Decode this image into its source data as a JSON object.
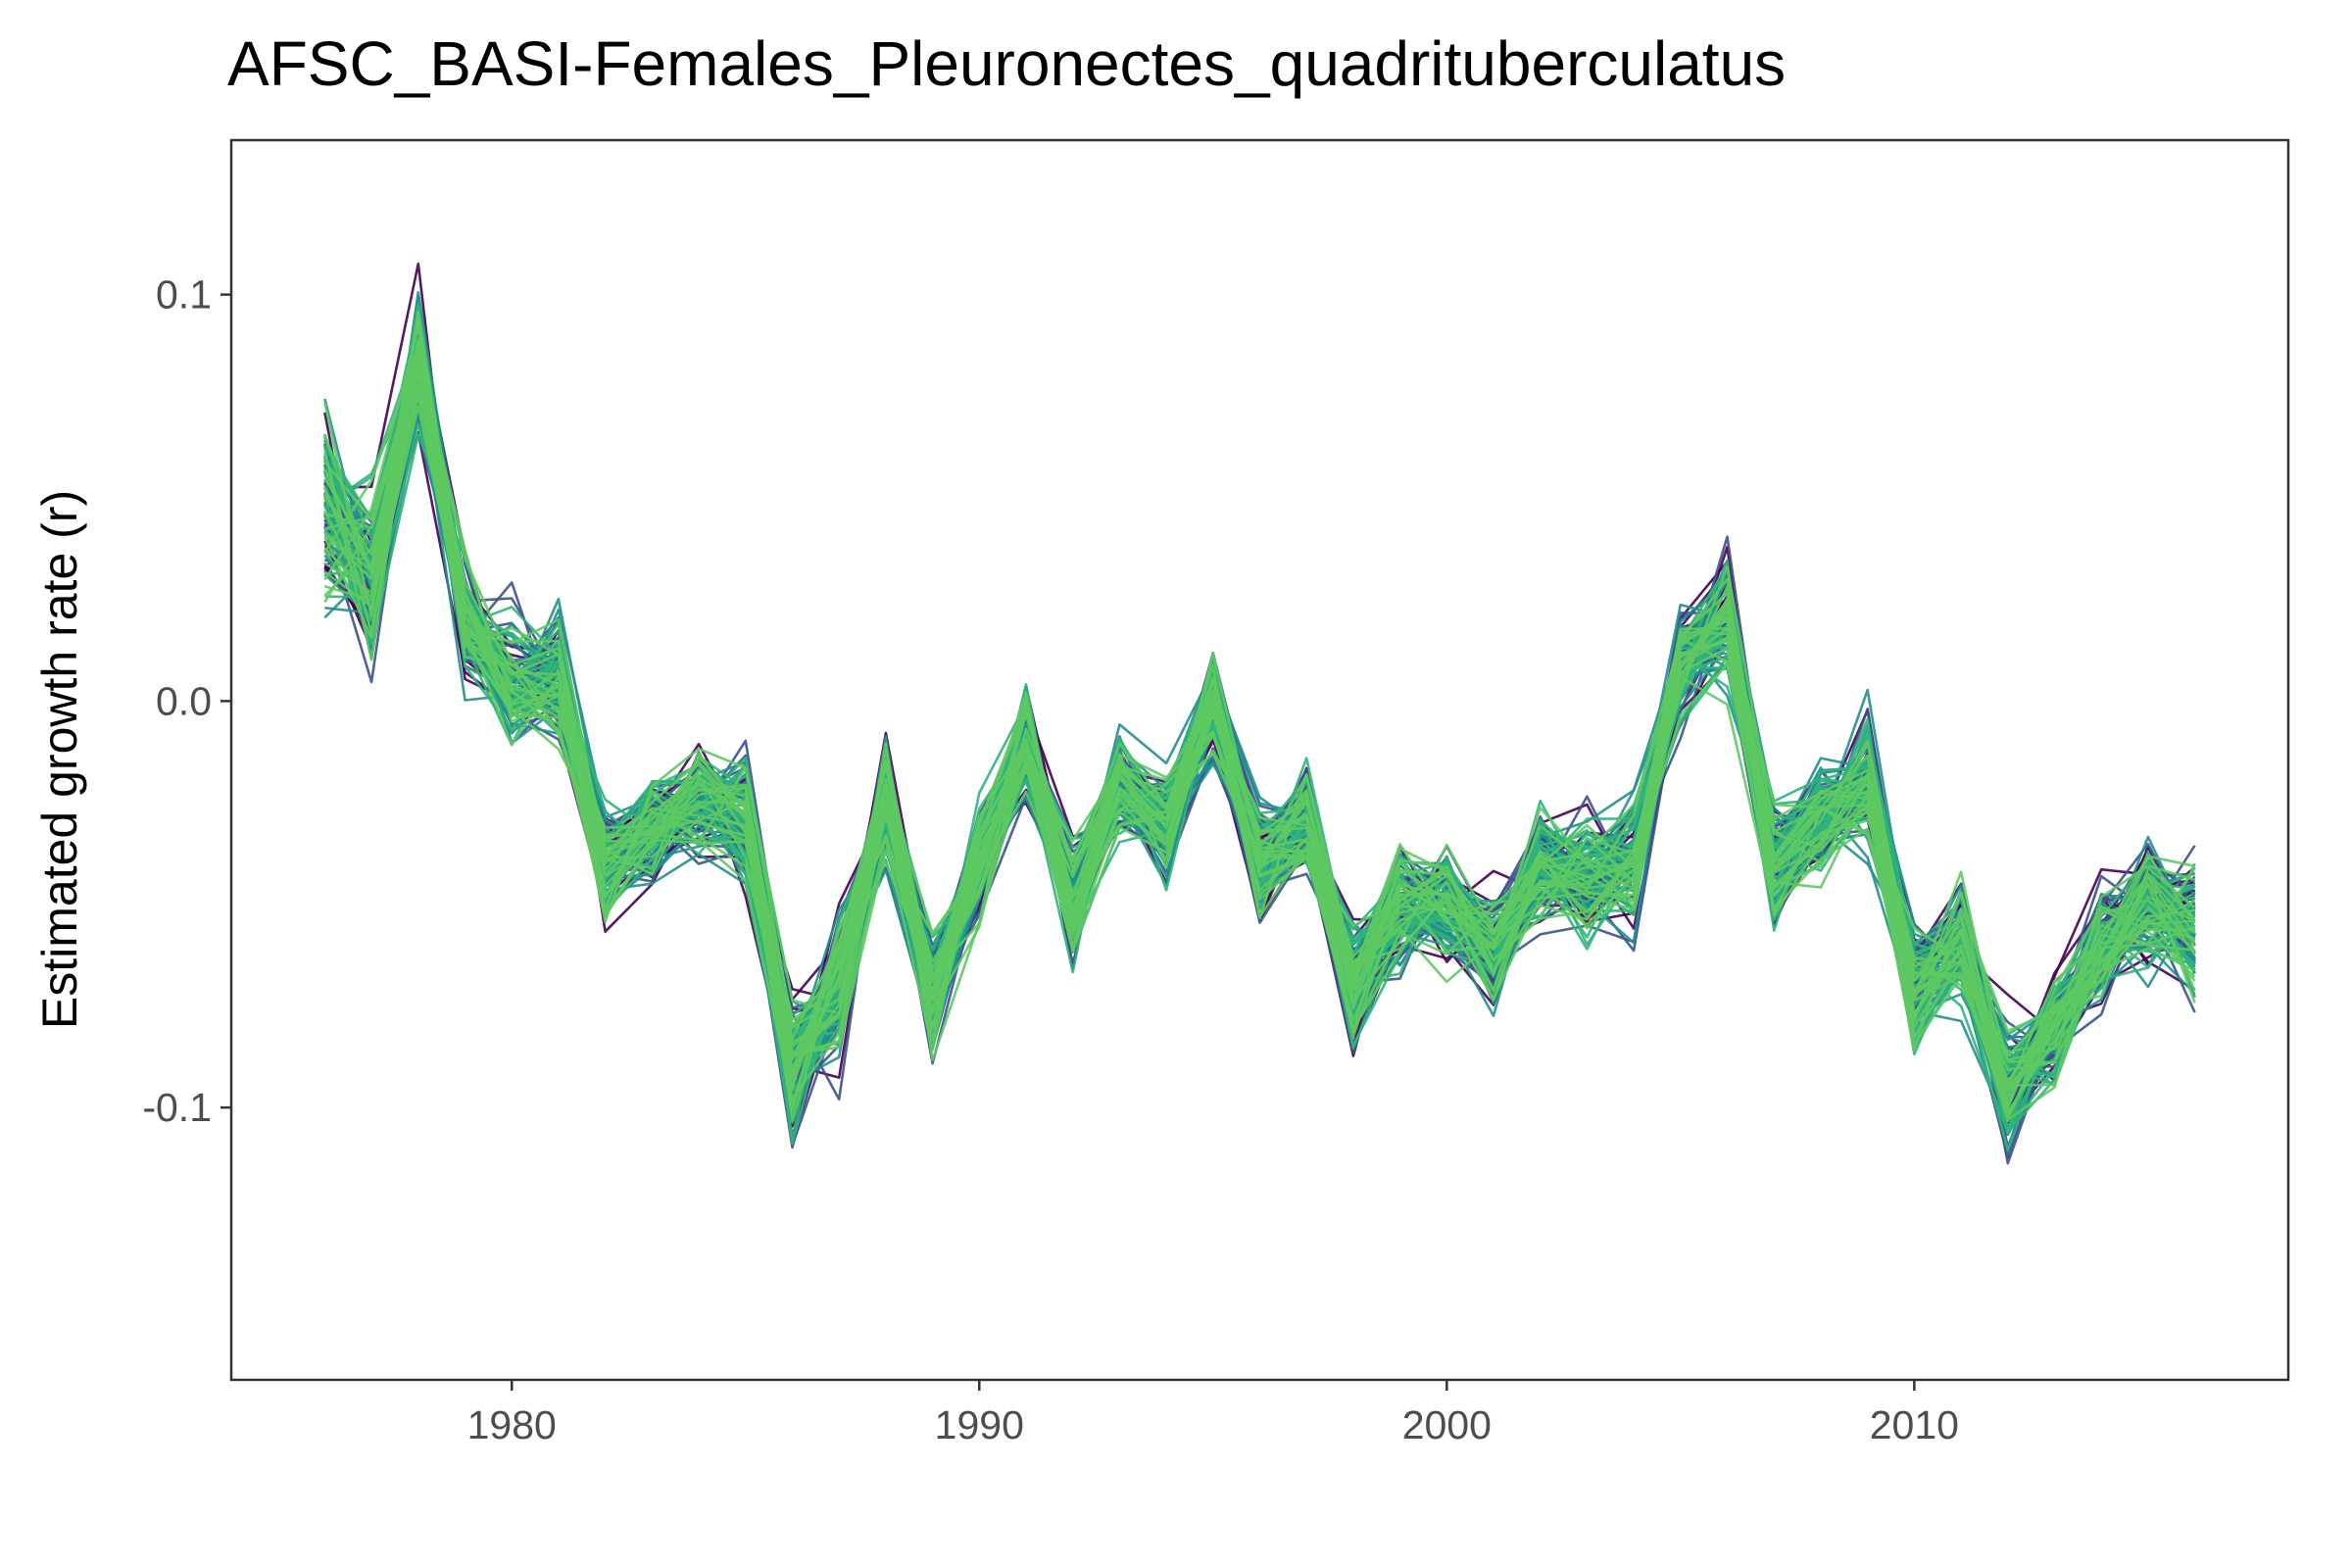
{
  "chart_data": {
    "type": "line",
    "title": "AFSC_BASI-Females_Pleuronectes_quadrituberculatus",
    "xlabel": "",
    "ylabel": "Estimated growth rate (r)",
    "xlim": [
      1974,
      2018
    ],
    "ylim": [
      -0.167,
      0.138
    ],
    "x_ticks": [
      1980,
      1990,
      2000,
      2010
    ],
    "x_tick_labels": [
      "1980",
      "1990",
      "2000",
      "2010"
    ],
    "y_ticks": [
      0.1,
      0.0,
      -0.1
    ],
    "y_tick_labels": [
      "0.1",
      "0.0",
      "-0.1"
    ],
    "grid": false,
    "legend": "none",
    "ensemble_size": 120,
    "palette": [
      "#440154",
      "#3b528b",
      "#21908c",
      "#2fb47c",
      "#5ec962"
    ],
    "x": [
      1976,
      1977,
      1978,
      1979,
      1980,
      1981,
      1982,
      1983,
      1984,
      1985,
      1986,
      1987,
      1988,
      1989,
      1990,
      1991,
      1992,
      1993,
      1994,
      1995,
      1996,
      1997,
      1998,
      1999,
      2000,
      2001,
      2002,
      2003,
      2004,
      2005,
      2006,
      2007,
      2008,
      2009,
      2010,
      2011,
      2012,
      2013,
      2014,
      2015,
      2016
    ],
    "mean_values": [
      0.05,
      0.03,
      0.085,
      0.02,
      0.005,
      0.005,
      -0.04,
      -0.03,
      -0.025,
      -0.03,
      -0.09,
      -0.07,
      -0.025,
      -0.075,
      -0.04,
      -0.01,
      -0.05,
      -0.02,
      -0.03,
      0.0,
      -0.04,
      -0.03,
      -0.07,
      -0.05,
      -0.05,
      -0.06,
      -0.04,
      -0.045,
      -0.04,
      0.01,
      0.02,
      -0.04,
      -0.03,
      -0.02,
      -0.07,
      -0.06,
      -0.095,
      -0.08,
      -0.06,
      -0.05,
      -0.055
    ],
    "spread_sd": [
      0.018,
      0.016,
      0.015,
      0.013,
      0.013,
      0.012,
      0.012,
      0.012,
      0.012,
      0.012,
      0.015,
      0.015,
      0.012,
      0.012,
      0.011,
      0.011,
      0.011,
      0.011,
      0.011,
      0.011,
      0.012,
      0.012,
      0.012,
      0.012,
      0.012,
      0.012,
      0.012,
      0.012,
      0.012,
      0.012,
      0.013,
      0.012,
      0.012,
      0.012,
      0.012,
      0.012,
      0.014,
      0.013,
      0.013,
      0.013,
      0.014
    ]
  }
}
